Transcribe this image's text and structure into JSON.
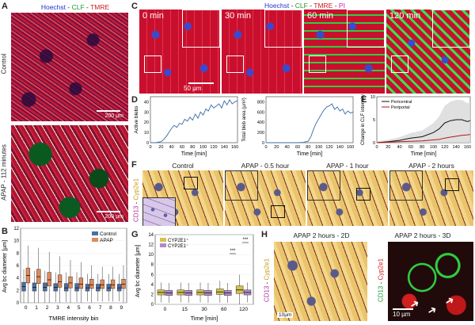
{
  "panels": {
    "A": {
      "label": "A",
      "title_parts": [
        "Hoechst",
        " - ",
        "CLF",
        " - ",
        "TMRE"
      ],
      "title_colors": [
        "#2233cc",
        "#222222",
        "#1a9a2a",
        "#222222",
        "#cc1a1a"
      ],
      "top_side_label": "Control",
      "bottom_side_label": "APAP - 112 minutes",
      "top_scale": "200 µm",
      "bottom_scale": "200 µm"
    },
    "B": {
      "label": "B",
      "xlabel": "TMRE intensity bin",
      "ylabel": "Avg bc diameter [µm]",
      "legend": [
        "Control",
        "APAP"
      ],
      "colors": {
        "control": "#4a6fa5",
        "apap": "#e08a5a"
      }
    },
    "C": {
      "label": "C",
      "title_parts": [
        "Hoechst",
        " - ",
        "CLF",
        " - ",
        "TMRE",
        " - ",
        "PI"
      ],
      "title_colors": [
        "#2233cc",
        "#222222",
        "#1a9a2a",
        "#222222",
        "#cc1a1a",
        "#222222",
        "#c020c0"
      ],
      "times": [
        "0 min",
        "30 min",
        "60 min",
        "120 min"
      ],
      "scale": "50 µm"
    },
    "D": {
      "label": "D"
    },
    "E": {
      "label": "E"
    },
    "F": {
      "label": "F",
      "side_label_parts": [
        "CD13",
        " - ",
        "Cyp2e1"
      ],
      "side_label_colors": [
        "#b0309a",
        "#222222",
        "#c89a10"
      ],
      "headers": [
        "Control",
        "APAP - 0.5 hour",
        "APAP - 1 hour",
        "APAP - 2 hours"
      ]
    },
    "G": {
      "label": "G",
      "xlabel": "Time [min]",
      "ylabel": "Avg bc diameter [µm]",
      "legend": [
        "CYP2E1⁺",
        "CYP2E1⁻"
      ],
      "sig": [
        "***",
        "***"
      ],
      "colors": {
        "pos": "#d4c24a",
        "neg": "#b08ac8"
      }
    },
    "H": {
      "label": "H",
      "left_title": "APAP 2 hours - 2D",
      "right_title": "APAP 2 hours - 3D",
      "left_side_parts": [
        "CD13",
        " - ",
        "Cyp2e1"
      ],
      "left_side_colors": [
        "#b0309a",
        "#222222",
        "#c89a10"
      ],
      "right_side_parts": [
        "CD13",
        " - ",
        "Cyp2e1"
      ],
      "right_side_colors": [
        "#1a9a2a",
        "#222222",
        "#cc1a1a"
      ],
      "left_scale": "10µm",
      "right_scale": "10 µm"
    }
  },
  "chart_data": [
    {
      "panel": "B",
      "type": "box",
      "title": "",
      "xlabel": "TMRE intensity bin",
      "ylabel": "Avg bc diameter [µm]",
      "categories": [
        "0",
        "1",
        "2",
        "3",
        "4",
        "5",
        "6",
        "7",
        "8",
        "9"
      ],
      "ylim": [
        0,
        12
      ],
      "yticks": [
        0,
        2,
        4,
        6,
        8,
        10,
        12
      ],
      "series": [
        {
          "name": "Control",
          "median": [
            2.6,
            2.5,
            2.5,
            2.5,
            2.4,
            2.4,
            2.4,
            2.4,
            2.4,
            2.4
          ],
          "q1": [
            1.9,
            1.9,
            1.9,
            1.9,
            1.9,
            1.9,
            1.9,
            1.9,
            1.9,
            1.9
          ],
          "q3": [
            3.3,
            3.2,
            3.2,
            3.1,
            3.1,
            3.1,
            3.0,
            3.0,
            3.0,
            3.0
          ]
        },
        {
          "name": "APAP",
          "median": [
            4.4,
            4.2,
            3.7,
            3.4,
            3.2,
            3.0,
            2.9,
            2.9,
            2.9,
            3.0
          ],
          "q1": [
            3.2,
            3.1,
            2.7,
            2.5,
            2.4,
            2.3,
            2.3,
            2.3,
            2.3,
            2.3
          ],
          "q3": [
            5.6,
            5.4,
            4.9,
            4.5,
            4.2,
            4.0,
            3.8,
            3.7,
            3.7,
            3.8
          ]
        }
      ]
    },
    {
      "panel": "D-left",
      "type": "line",
      "xlabel": "Time [min]",
      "ylabel": "Active blebs",
      "xlim": [
        0,
        165
      ],
      "ylim": [
        0,
        45
      ],
      "xticks": [
        0,
        20,
        40,
        60,
        80,
        100,
        120,
        140,
        160
      ],
      "yticks": [
        0,
        10,
        20,
        30,
        40
      ],
      "x": [
        0,
        10,
        20,
        25,
        30,
        35,
        40,
        45,
        50,
        55,
        60,
        65,
        70,
        75,
        80,
        85,
        90,
        95,
        100,
        105,
        110,
        115,
        120,
        125,
        130,
        135,
        140,
        145,
        150,
        155,
        160,
        165
      ],
      "y": [
        0,
        0,
        1,
        3,
        6,
        10,
        14,
        17,
        15,
        19,
        18,
        23,
        21,
        25,
        22,
        28,
        24,
        30,
        27,
        33,
        31,
        37,
        34,
        36,
        38,
        34,
        41,
        37,
        42,
        38,
        40,
        41
      ]
    },
    {
      "panel": "D-right",
      "type": "line",
      "xlabel": "Time [min]",
      "ylabel": "Total bleb area (µm²)",
      "xlim": [
        0,
        165
      ],
      "ylim": [
        0,
        900
      ],
      "xticks": [
        0,
        20,
        40,
        60,
        80,
        100,
        120,
        140,
        160
      ],
      "yticks": [
        0,
        200,
        400,
        600,
        800
      ],
      "x": [
        0,
        20,
        40,
        60,
        70,
        80,
        85,
        90,
        95,
        100,
        105,
        110,
        115,
        120,
        125,
        130,
        135,
        140,
        145,
        150,
        155,
        160,
        165
      ],
      "y": [
        0,
        0,
        0,
        0,
        5,
        30,
        120,
        260,
        380,
        470,
        560,
        640,
        700,
        720,
        760,
        650,
        700,
        620,
        660,
        560,
        620,
        580,
        600
      ]
    },
    {
      "panel": "E",
      "type": "line",
      "xlabel": "Time [min]",
      "ylabel": "Change in CLF intensity",
      "xlim": [
        0,
        165
      ],
      "ylim": [
        0,
        10
      ],
      "xticks": [
        0,
        20,
        40,
        60,
        80,
        100,
        120,
        140,
        160
      ],
      "yticks": [
        0,
        5,
        10
      ],
      "x": [
        0,
        20,
        40,
        60,
        80,
        100,
        110,
        120,
        130,
        140,
        150,
        160,
        165
      ],
      "series": [
        {
          "name": "Pericentral",
          "color": "#111111",
          "y": [
            0,
            0.2,
            0.5,
            1.0,
            1.3,
            2.2,
            3.0,
            4.3,
            4.8,
            5.0,
            5.0,
            4.6,
            4.8
          ]
        },
        {
          "name": "Periportal",
          "color": "#b01818",
          "y": [
            0,
            0.1,
            0.2,
            0.3,
            0.4,
            0.6,
            0.7,
            1.0,
            1.2,
            1.4,
            1.6,
            1.7,
            1.8
          ]
        }
      ]
    },
    {
      "panel": "G",
      "type": "box",
      "xlabel": "Time [min]",
      "ylabel": "Avg bc diameter [µm]",
      "categories": [
        "0",
        "15",
        "30",
        "60",
        "120"
      ],
      "ylim": [
        0,
        14
      ],
      "yticks": [
        0,
        2,
        4,
        6,
        8,
        10,
        12,
        14
      ],
      "series": [
        {
          "name": "CYP2E1⁺",
          "median": [
            2.4,
            2.4,
            2.4,
            2.5,
            2.9
          ],
          "q1": [
            1.9,
            1.9,
            1.9,
            2.0,
            2.2
          ],
          "q3": [
            2.9,
            2.9,
            2.9,
            3.1,
            3.7
          ]
        },
        {
          "name": "CYP2E1⁻",
          "median": [
            2.3,
            2.3,
            2.3,
            2.3,
            2.4
          ],
          "q1": [
            1.8,
            1.8,
            1.8,
            1.8,
            1.9
          ],
          "q3": [
            2.8,
            2.8,
            2.8,
            2.8,
            2.9
          ]
        }
      ]
    }
  ]
}
